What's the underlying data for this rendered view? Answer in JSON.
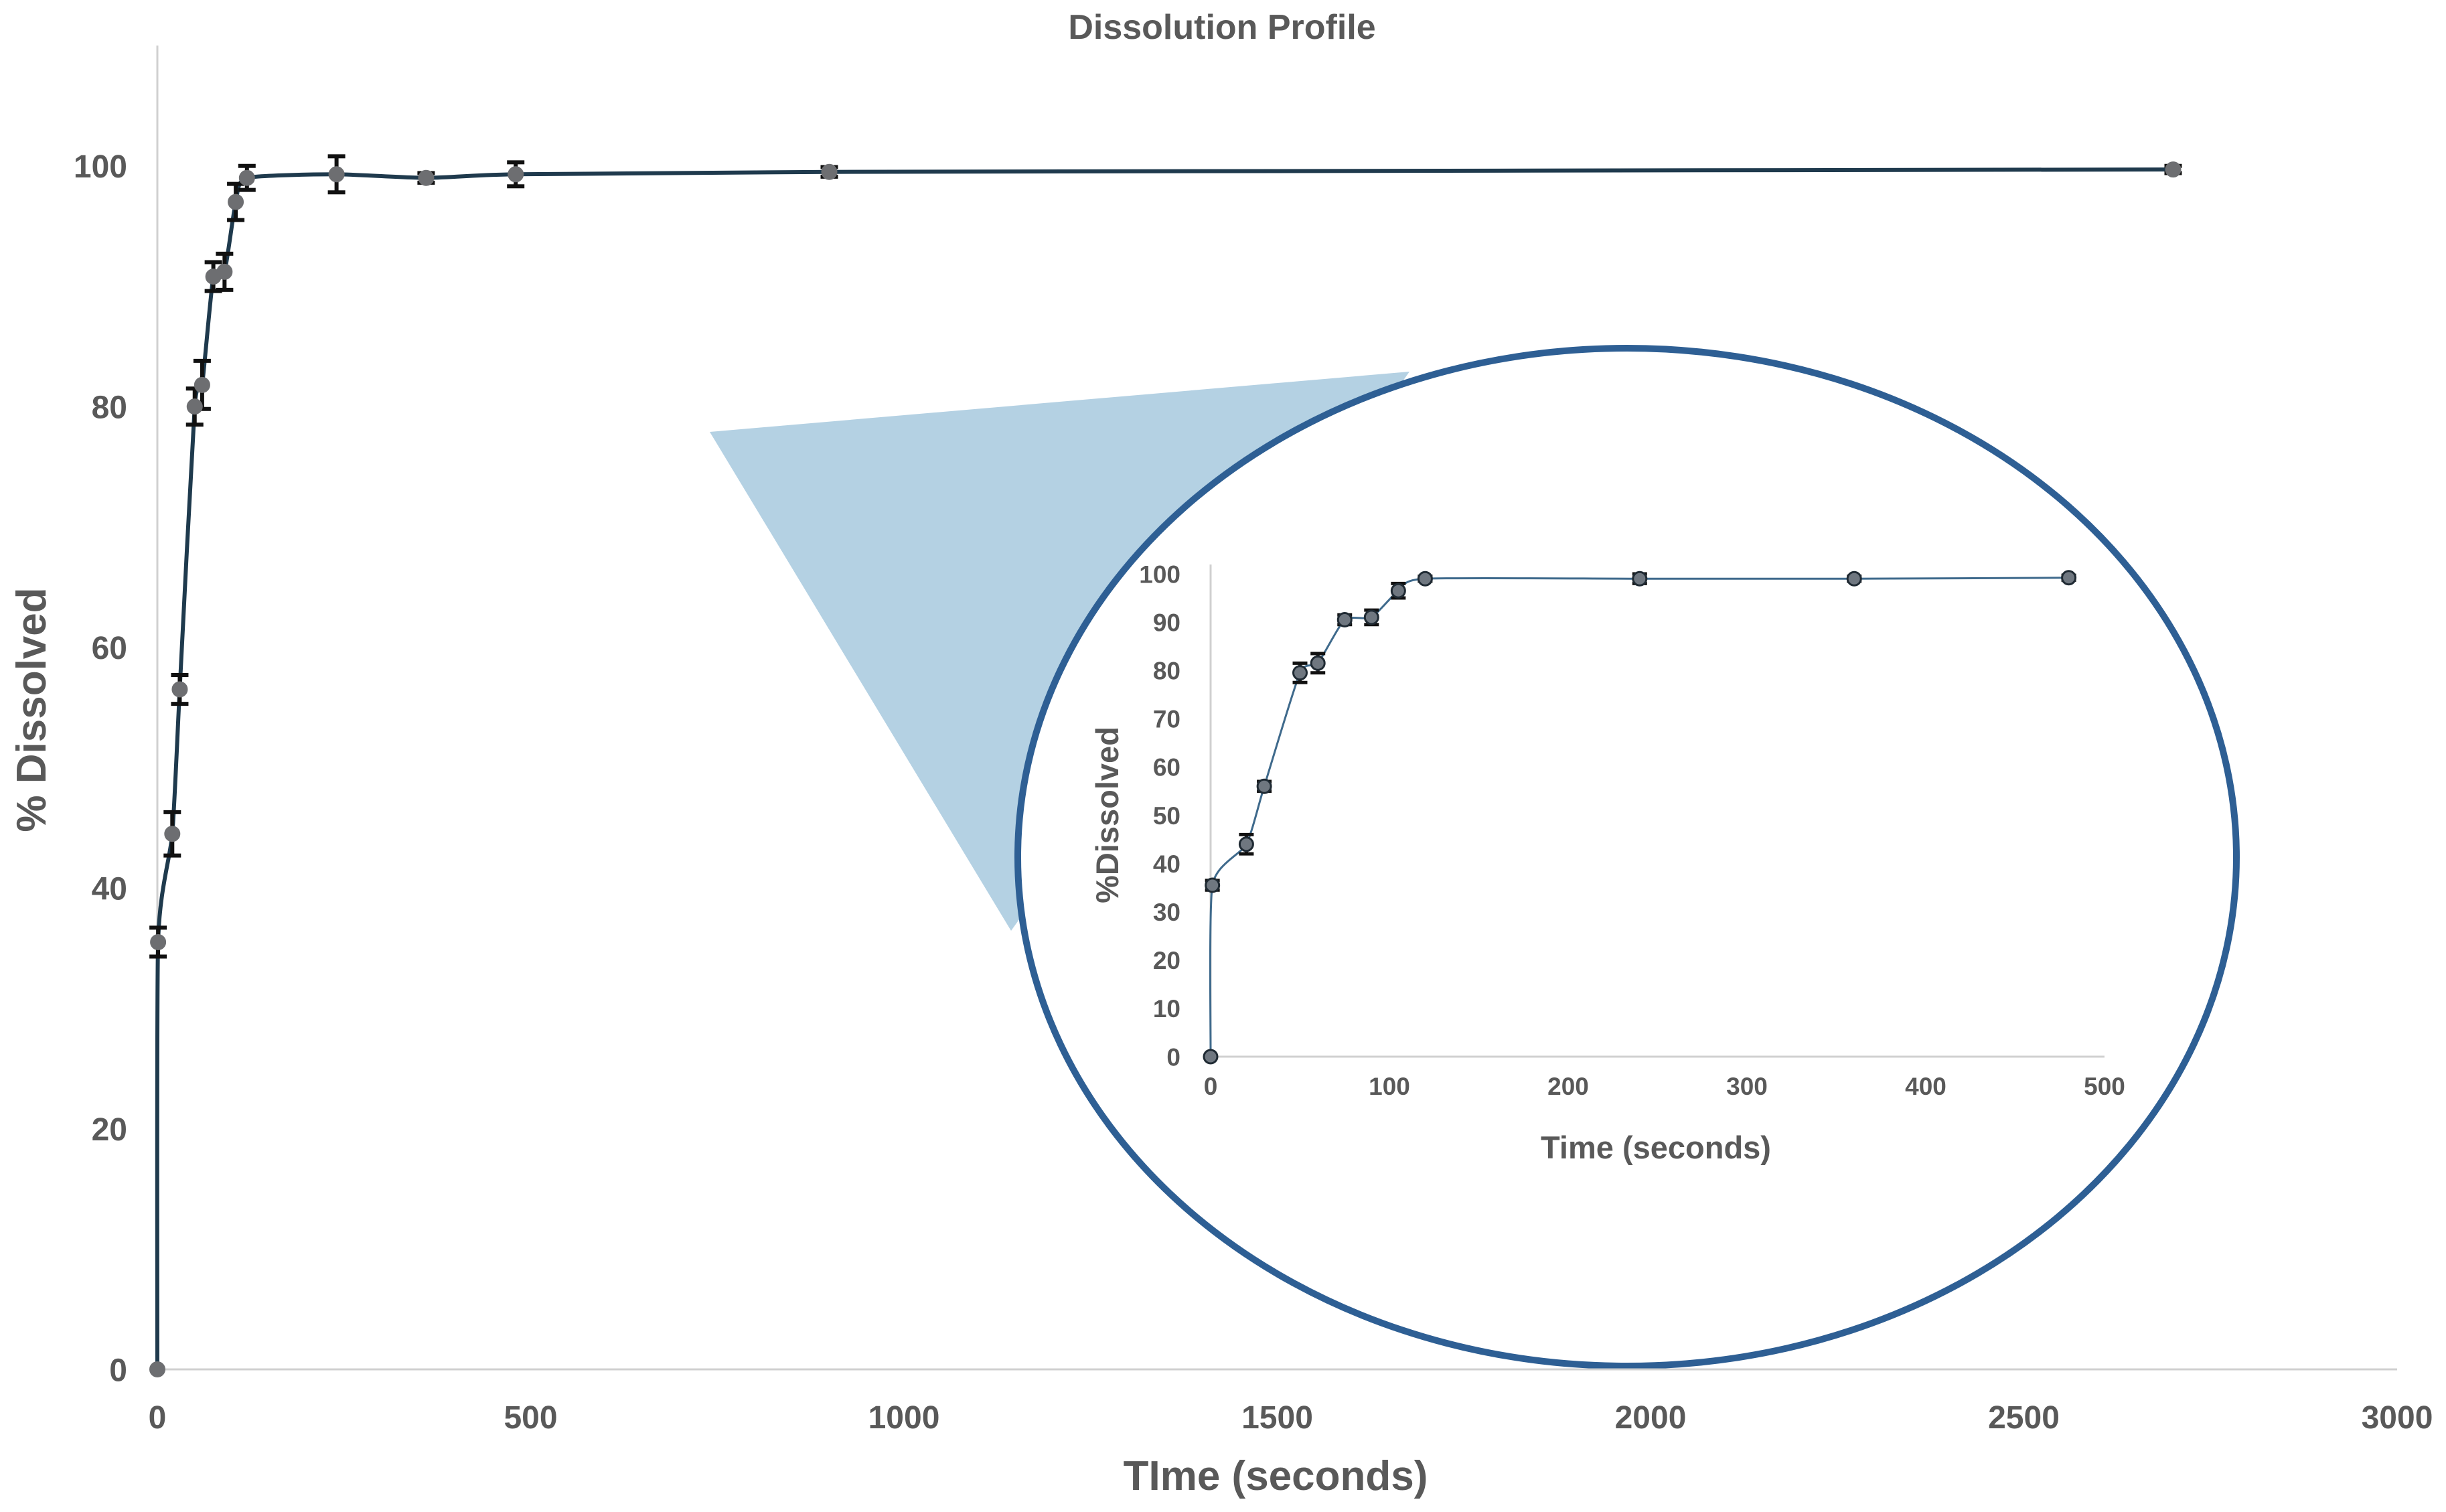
{
  "chart_data": [
    {
      "type": "scatter",
      "title": "Dissolution Profile",
      "xlabel": "TIme (seconds)",
      "ylabel": "% Dissolved",
      "xlim": [
        0,
        3000
      ],
      "ylim": [
        0,
        110
      ],
      "xticks": [
        "0",
        "500",
        "1000",
        "1500",
        "2000",
        "2500",
        "3000"
      ],
      "yticks": [
        "0",
        "20",
        "40",
        "60",
        "80",
        "100"
      ],
      "grid": false,
      "series": [
        {
          "x": [
            0,
            1,
            20,
            30,
            50,
            60,
            75,
            90,
            105,
            120,
            240,
            360,
            480,
            900,
            2700
          ],
          "y": [
            0,
            35.5,
            44.5,
            56.5,
            80,
            81.8,
            90.8,
            91.2,
            97,
            99,
            99.3,
            99,
            99.3,
            99.5,
            99.7
          ],
          "err": [
            0,
            1.2,
            1.8,
            1.2,
            1.5,
            2.0,
            1.2,
            1.5,
            1.5,
            1.0,
            1.5,
            0.4,
            1.0,
            0.4,
            0.3
          ]
        }
      ],
      "colors": {
        "line": "#1f3a4d",
        "marker": "#6d6e71",
        "error": "#111111"
      }
    },
    {
      "type": "scatter",
      "title": "",
      "xlabel": "Time (seconds)",
      "ylabel": "%Dissolved",
      "xlim": [
        0,
        500
      ],
      "ylim": [
        0,
        100
      ],
      "xticks": [
        "0",
        "100",
        "200",
        "300",
        "400",
        "500"
      ],
      "yticks": [
        "0",
        "10",
        "20",
        "30",
        "40",
        "50",
        "60",
        "70",
        "80",
        "90",
        "100"
      ],
      "grid": false,
      "series": [
        {
          "x": [
            0,
            1,
            20,
            30,
            50,
            60,
            75,
            90,
            105,
            120,
            240,
            360,
            480
          ],
          "y": [
            0,
            35.5,
            44,
            56,
            79.5,
            81.5,
            90.5,
            91,
            96.5,
            99,
            99,
            99,
            99.2
          ],
          "err": [
            0,
            1.0,
            2.0,
            1.0,
            2.0,
            2.0,
            1.0,
            1.5,
            1.5,
            0.5,
            1.0,
            0.5,
            0.5
          ]
        }
      ],
      "colors": {
        "line": "#3f6a8c",
        "marker": "#6f7780",
        "marker_stroke": "#1f2a33",
        "error": "#111111"
      }
    }
  ],
  "callout": {
    "wedge_color": "#b4d1e3",
    "ellipse_color": "#2e5f94"
  }
}
